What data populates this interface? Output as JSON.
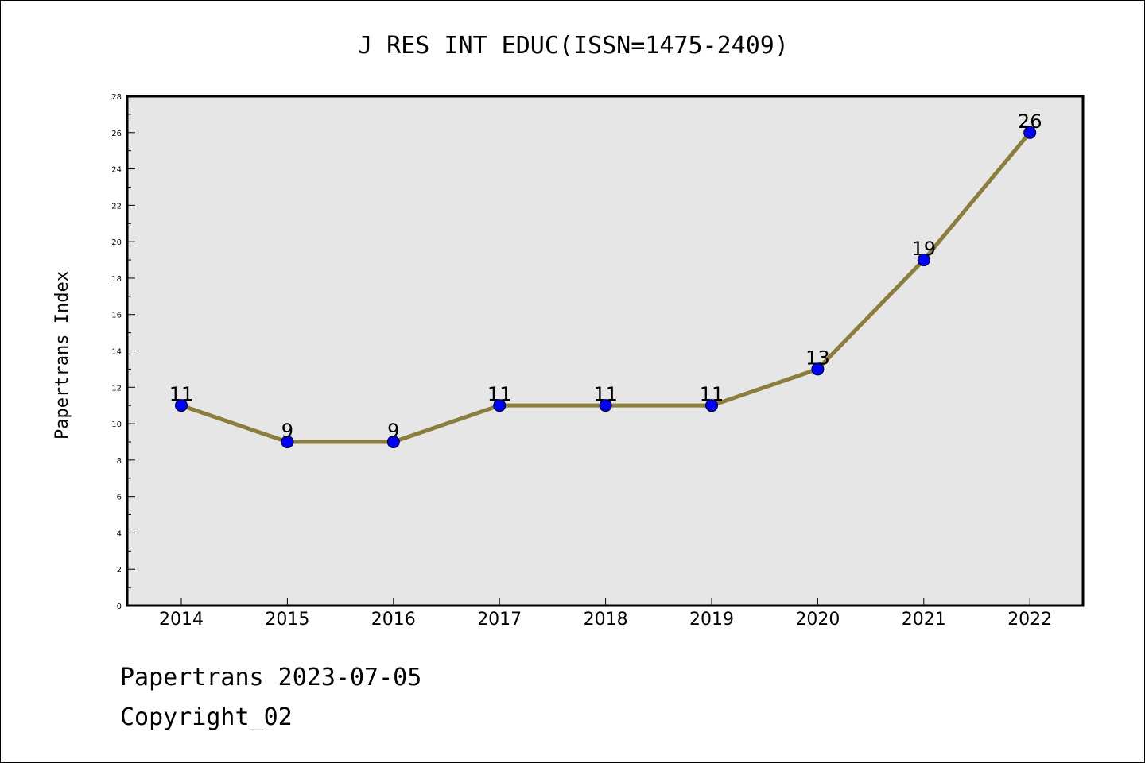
{
  "chart_data": {
    "type": "line",
    "title": "J RES INT EDUC(ISSN=1475-2409)",
    "xlabel": "",
    "ylabel": "Papertrans Index",
    "categories": [
      "2014",
      "2015",
      "2016",
      "2017",
      "2018",
      "2019",
      "2020",
      "2021",
      "2022"
    ],
    "series": [
      {
        "values": [
          11,
          9,
          9,
          11,
          11,
          11,
          13,
          19,
          26
        ]
      }
    ],
    "ylim": [
      0,
      28
    ],
    "yticks": [
      0,
      2,
      4,
      6,
      8,
      10,
      12,
      14,
      16,
      18,
      20,
      22,
      24,
      26,
      28
    ],
    "grid": false,
    "data_labels": true,
    "colors": {
      "line": "#8b7d3a",
      "marker": "#0000ff",
      "plot_background": "#e6e6e6"
    }
  },
  "footer": {
    "source": "Papertrans 2023-07-05",
    "copyright": "Copyright_02"
  }
}
